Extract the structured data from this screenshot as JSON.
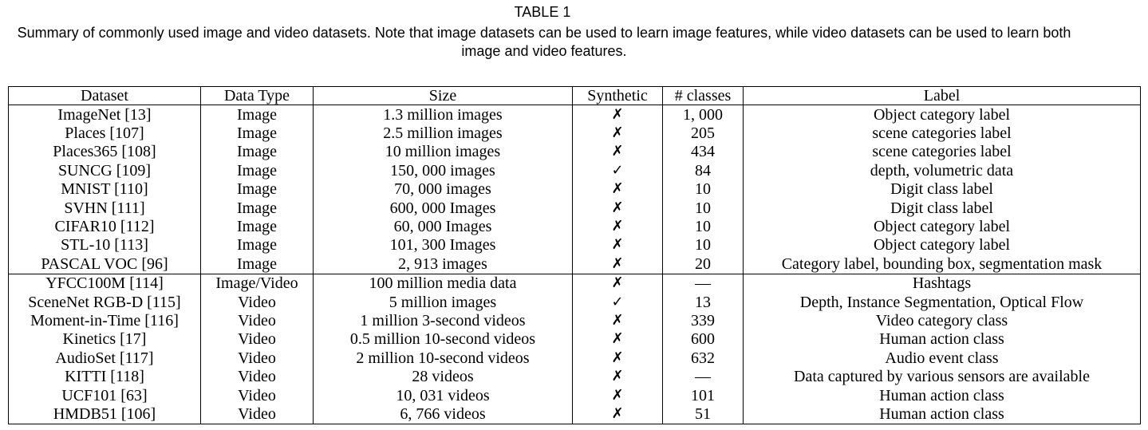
{
  "caption": {
    "label": "TABLE 1",
    "text": "Summary of commonly used image and video datasets. Note that image datasets can be used to learn image features, while video datasets can be used to learn both image and video features."
  },
  "table": {
    "headers": [
      "Dataset",
      "Data Type",
      "Size",
      "Synthetic",
      "# classes",
      "Label"
    ],
    "image_rows": [
      [
        "ImageNet [13]",
        "Image",
        "1.3 million images",
        "✗",
        "1, 000",
        "Object category label"
      ],
      [
        "Places [107]",
        "Image",
        "2.5 million images",
        "✗",
        "205",
        "scene categories label"
      ],
      [
        "Places365 [108]",
        "Image",
        "10 million images",
        "✗",
        "434",
        "scene categories label"
      ],
      [
        "SUNCG [109]",
        "Image",
        "150, 000 images",
        "✓",
        "84",
        "depth, volumetric data"
      ],
      [
        "MNIST [110]",
        "Image",
        "70, 000 images",
        "✗",
        "10",
        "Digit class label"
      ],
      [
        "SVHN [111]",
        "Image",
        "600, 000 Images",
        "✗",
        "10",
        "Digit class label"
      ],
      [
        "CIFAR10 [112]",
        "Image",
        "60, 000 Images",
        "✗",
        "10",
        "Object category label"
      ],
      [
        "STL-10 [113]",
        "Image",
        "101, 300 Images",
        "✗",
        "10",
        "Object category label"
      ],
      [
        "PASCAL VOC [96]",
        "Image",
        "2, 913 images",
        "✗",
        "20",
        "Category label, bounding box, segmentation mask"
      ]
    ],
    "video_rows": [
      [
        "YFCC100M [114]",
        "Image/Video",
        "100 million media data",
        "✗",
        "—",
        "Hashtags"
      ],
      [
        "SceneNet RGB-D [115]",
        "Video",
        "5 million images",
        "✓",
        "13",
        "Depth, Instance Segmentation, Optical Flow"
      ],
      [
        "Moment-in-Time [116]",
        "Video",
        "1 million 3-second videos",
        "✗",
        "339",
        "Video category class"
      ],
      [
        "Kinetics [17]",
        "Video",
        "0.5 million 10-second videos",
        "✗",
        "600",
        "Human action class"
      ],
      [
        "AudioSet [117]",
        "Video",
        "2 million 10-second videos",
        "✗",
        "632",
        "Audio event class"
      ],
      [
        "KITTI [118]",
        "Video",
        "28 videos",
        "✗",
        "—",
        "Data captured by various sensors are available"
      ],
      [
        "UCF101 [63]",
        "Video",
        "10, 031 videos",
        "✗",
        "101",
        "Human action class"
      ],
      [
        "HMDB51 [106]",
        "Video",
        "6, 766 videos",
        "✗",
        "51",
        "Human action class"
      ]
    ]
  }
}
